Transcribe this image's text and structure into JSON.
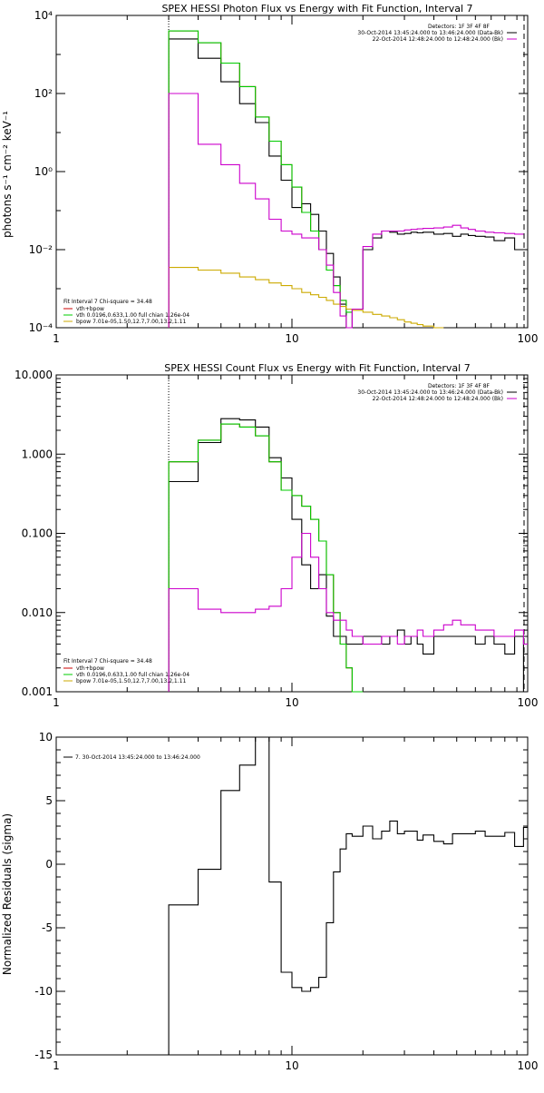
{
  "colors": {
    "data": "#000000",
    "total_fit": "#cc0000",
    "vth": "#00cc00",
    "bpow": "#ccaa00",
    "background": "#cc00cc"
  },
  "chart_data": [
    {
      "type": "line",
      "title": "SPEX HESSI Photon Flux vs Energy with Fit Function, Interval 7",
      "ylabel": "photons s⁻¹ cm⁻² keV⁻¹",
      "xlabel": "",
      "xscale": "log",
      "yscale": "log",
      "xlim": [
        1,
        100
      ],
      "ylim": [
        0.0001,
        10000
      ],
      "xticks": [
        1,
        10,
        100
      ],
      "xtick_labels": [
        "1",
        "10",
        "100"
      ],
      "yticks": [
        0.0001,
        0.01,
        1,
        100,
        10000
      ],
      "ytick_labels": [
        "10⁻⁴",
        "10⁻²",
        "10⁰",
        "10²",
        "10⁴"
      ],
      "top_legend": {
        "header": "Detectors: 1F 3F 4F 8F",
        "entries": [
          {
            "text": "30-Oct-2014 13:45:24.000 to 13:46:24.000 (Data-Bk)",
            "color": "#000000"
          },
          {
            "text": "22-Oct-2014 12:48:24.000 to 12:48:24.000 (Bk)",
            "color": "#cc00cc"
          }
        ]
      },
      "fit_legend": {
        "header": "Fit Interval 7   Chi-square = 34.48",
        "entries": [
          {
            "text": "vth+bpow",
            "color": "#cc0000"
          },
          {
            "text": "vth 0.0196,0.633,1.00  full chian 1.26e-04",
            "color": "#00cc00"
          },
          {
            "text": "bpow 7.01e-05,1.50,12.7,7.00,13.2,1.11",
            "color": "#ccaa00"
          }
        ]
      },
      "energy_edges": [
        3,
        4,
        5,
        6,
        7,
        8,
        9,
        10,
        11,
        12,
        13,
        14,
        15,
        16,
        17,
        18,
        20,
        22,
        24,
        26,
        28,
        30,
        32,
        34,
        36,
        40,
        44,
        48,
        52,
        56,
        60,
        66,
        72,
        80,
        88,
        96
      ],
      "series": [
        {
          "name": "Data-Bk",
          "color": "#000000",
          "values": [
            2500,
            800,
            200,
            55,
            18,
            2.5,
            0.6,
            0.12,
            0.15,
            0.08,
            0.03,
            0.008,
            0.002,
            0.0004,
            0.0001,
            0.0003,
            0.01,
            0.02,
            0.03,
            0.028,
            0.025,
            0.026,
            0.028,
            0.027,
            0.028,
            0.025,
            0.026,
            0.022,
            0.025,
            0.023,
            0.022,
            0.021,
            0.017,
            0.02,
            0.01
          ]
        },
        {
          "name": "vth+bpow",
          "color": "#cc0000",
          "values": [
            4000,
            2000,
            600,
            150,
            25,
            6,
            1.5,
            0.4,
            0.09,
            0.03,
            0.01,
            0.003,
            0.0012,
            0.0005,
            0.0003
          ]
        },
        {
          "name": "vth",
          "color": "#00cc00",
          "values": [
            4000,
            2000,
            600,
            150,
            25,
            6,
            1.5,
            0.4,
            0.09,
            0.03,
            0.01,
            0.003,
            0.0012,
            0.0005,
            0.00025
          ]
        },
        {
          "name": "bpow",
          "color": "#ccaa00",
          "values": [
            0.0035,
            0.003,
            0.0025,
            0.002,
            0.0017,
            0.0014,
            0.0012,
            0.001,
            0.0008,
            0.0007,
            0.0006,
            0.0005,
            0.0004,
            0.00035,
            0.0003,
            0.00028,
            0.00025,
            0.00022,
            0.0002,
            0.00018,
            0.00016,
            0.00014,
            0.00013,
            0.00012,
            0.00011,
            0.0001
          ]
        },
        {
          "name": "Bk",
          "color": "#cc00cc",
          "values": [
            100,
            5,
            1.5,
            0.5,
            0.2,
            0.06,
            0.03,
            0.025,
            0.02,
            0.02,
            0.01,
            0.004,
            0.0008,
            0.0002,
            0.0001,
            0.0003,
            0.012,
            0.025,
            0.03,
            0.03,
            0.03,
            0.032,
            0.033,
            0.034,
            0.035,
            0.036,
            0.038,
            0.042,
            0.036,
            0.033,
            0.03,
            0.028,
            0.027,
            0.026,
            0.025
          ]
        }
      ]
    },
    {
      "type": "line",
      "title": "SPEX HESSI Count Flux vs Energy with Fit Function, Interval 7",
      "ylabel": "",
      "xlabel": "",
      "xscale": "log",
      "yscale": "log",
      "xlim": [
        1,
        100
      ],
      "ylim": [
        0.001,
        10
      ],
      "xticks": [
        1,
        10,
        100
      ],
      "xtick_labels": [
        "1",
        "10",
        "100"
      ],
      "yticks": [
        0.001,
        0.01,
        0.1,
        1,
        10
      ],
      "ytick_labels": [
        "0.001",
        "0.010",
        "0.100",
        "1.000",
        "10.000"
      ],
      "top_legend": {
        "header": "Detectors: 1F 3F 4F 8F",
        "entries": [
          {
            "text": "30-Oct-2014 13:45:24.000 to 13:46:24.000 (Data-Bk)",
            "color": "#000000"
          },
          {
            "text": "22-Oct-2014 12:48:24.000 to 12:48:24.000 (Bk)",
            "color": "#cc00cc"
          }
        ]
      },
      "fit_legend": {
        "header": "Fit Interval 7   Chi-square = 34.48",
        "entries": [
          {
            "text": "vth+bpow",
            "color": "#cc0000"
          },
          {
            "text": "vth 0.0196,0.633,1.00  full chian 1.26e-04",
            "color": "#00cc00"
          },
          {
            "text": "bpow 7.01e-05,1.50,12.7,7.00,13.2,1.11",
            "color": "#ccaa00"
          }
        ]
      },
      "energy_edges": [
        3,
        4,
        5,
        6,
        7,
        8,
        9,
        10,
        11,
        12,
        13,
        14,
        15,
        16,
        17,
        18,
        20,
        22,
        24,
        26,
        28,
        30,
        32,
        34,
        36,
        40,
        44,
        48,
        52,
        56,
        60,
        66,
        72,
        80,
        88,
        96,
        100
      ],
      "series": [
        {
          "name": "Data-Bk",
          "color": "#000000",
          "values": [
            0.45,
            1.4,
            2.8,
            2.7,
            2.2,
            0.9,
            0.5,
            0.15,
            0.04,
            0.02,
            0.03,
            0.009,
            0.005,
            0.005,
            0.004,
            0.004,
            0.005,
            0.005,
            0.004,
            0.005,
            0.006,
            0.004,
            0.005,
            0.004,
            0.003,
            0.005,
            0.005,
            0.005,
            0.005,
            0.005,
            0.004,
            0.005,
            0.004,
            0.003,
            0.005,
            0.001
          ]
        },
        {
          "name": "vth+bpow",
          "color": "#cc0000",
          "values": [
            0.8,
            1.5,
            2.4,
            2.2,
            1.7,
            0.8,
            0.35,
            0.3,
            0.22,
            0.15,
            0.08,
            0.03,
            0.01,
            0.004,
            0.002,
            0.001
          ]
        },
        {
          "name": "vth",
          "color": "#00cc00",
          "values": [
            0.8,
            1.5,
            2.4,
            2.2,
            1.7,
            0.8,
            0.35,
            0.3,
            0.22,
            0.15,
            0.08,
            0.03,
            0.01,
            0.004,
            0.002,
            0.001
          ]
        },
        {
          "name": "Bk",
          "color": "#cc00cc",
          "values": [
            0.02,
            0.011,
            0.01,
            0.01,
            0.011,
            0.012,
            0.02,
            0.05,
            0.1,
            0.05,
            0.02,
            0.01,
            0.008,
            0.008,
            0.006,
            0.005,
            0.004,
            0.004,
            0.005,
            0.005,
            0.004,
            0.005,
            0.005,
            0.006,
            0.005,
            0.006,
            0.007,
            0.008,
            0.007,
            0.007,
            0.006,
            0.006,
            0.005,
            0.005,
            0.006,
            0.004
          ]
        }
      ]
    },
    {
      "type": "line",
      "title": "",
      "ylabel": "Normalized Residuals (sigma)",
      "xlabel": "",
      "xscale": "log",
      "yscale": "linear",
      "xlim": [
        1,
        100
      ],
      "ylim": [
        -15,
        10
      ],
      "xticks": [
        1,
        10,
        100
      ],
      "xtick_labels": [
        "1",
        "10",
        "100"
      ],
      "yticks": [
        -15,
        -10,
        -5,
        0,
        5,
        10
      ],
      "ytick_labels": [
        "-15",
        "-10",
        "-5",
        "0",
        "5",
        "10"
      ],
      "legend": {
        "text": "7. 30-Oct-2014 13:45:24.000 to 13:46:24.000",
        "color": "#000000"
      },
      "energy_edges": [
        3,
        4,
        5,
        6,
        7,
        8,
        9,
        10,
        11,
        12,
        13,
        14,
        15,
        16,
        17,
        18,
        20,
        22,
        24,
        26,
        28,
        30,
        32,
        34,
        36,
        40,
        44,
        48,
        52,
        56,
        60,
        66,
        72,
        80,
        88,
        96,
        100
      ],
      "series": [
        {
          "name": "residuals",
          "color": "#000000",
          "values": [
            -3.2,
            -0.4,
            5.8,
            7.8,
            10.2,
            -1.4,
            -8.5,
            -9.7,
            -10,
            -9.7,
            -8.9,
            -4.6,
            -0.6,
            1.2,
            2.4,
            2.2,
            3.0,
            2.0,
            2.6,
            3.4,
            2.4,
            2.6,
            2.6,
            1.9,
            2.3,
            1.8,
            1.6,
            2.4,
            2.4,
            2.4,
            2.6,
            2.2,
            2.2,
            2.5,
            1.4,
            2.9
          ]
        }
      ]
    }
  ]
}
